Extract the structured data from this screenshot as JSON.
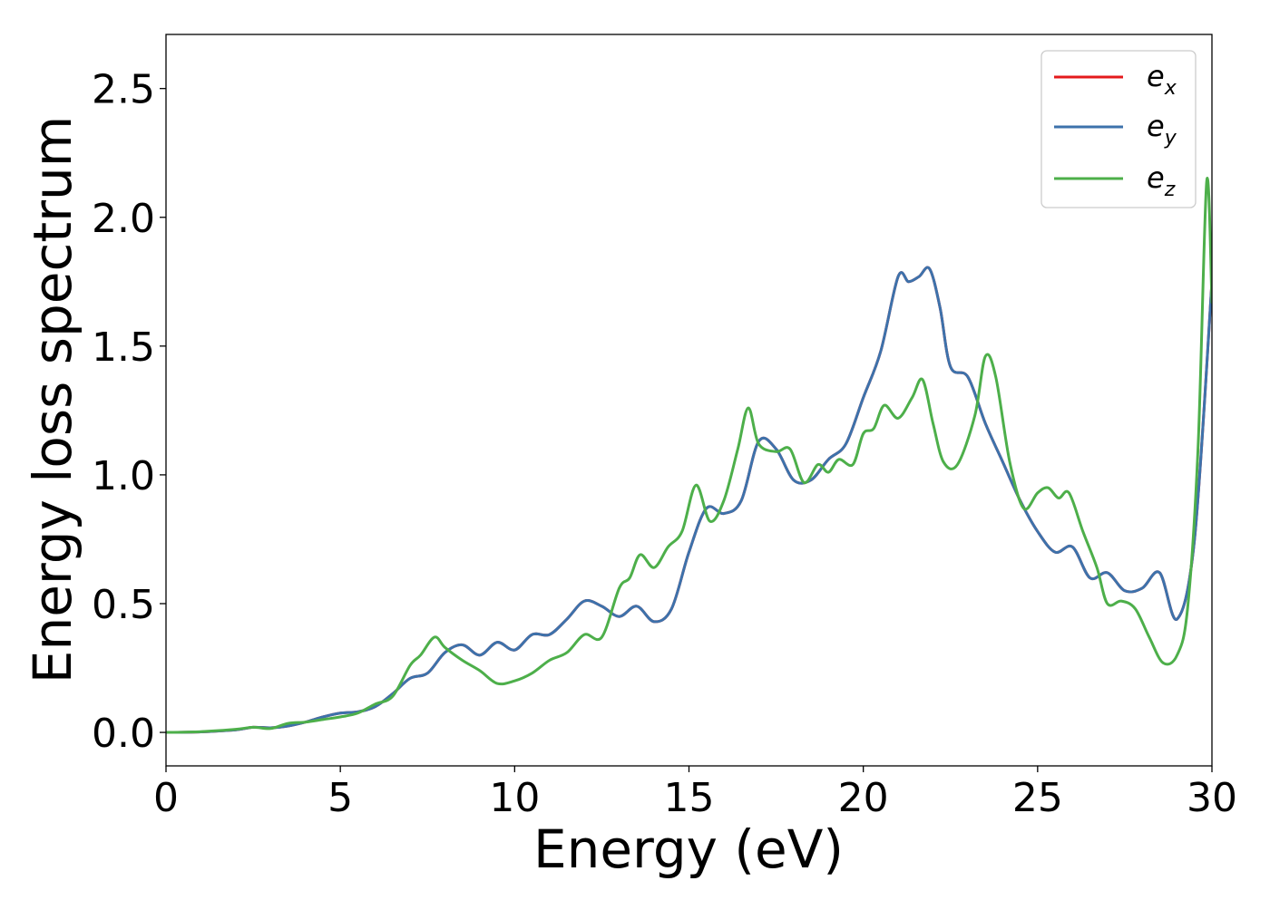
{
  "chart_data": {
    "type": "line",
    "title": "",
    "xlabel": "Energy (eV)",
    "ylabel": "Energy loss spectrum",
    "xlim": [
      0,
      30
    ],
    "ylim": [
      -0.13,
      2.71
    ],
    "xticks": [
      0,
      5,
      10,
      15,
      20,
      25,
      30
    ],
    "xtick_labels": [
      "0",
      "5",
      "10",
      "15",
      "20",
      "25",
      "30"
    ],
    "yticks": [
      0.0,
      0.5,
      1.0,
      1.5,
      2.0,
      2.5
    ],
    "ytick_labels": [
      "0.0",
      "0.5",
      "1.0",
      "1.5",
      "2.0",
      "2.5"
    ],
    "grid": false,
    "legend_position": "top-right",
    "series": [
      {
        "name": "e_x",
        "legend_base": "e",
        "legend_sub": "x",
        "color": "#e41a1c",
        "x": [
          0,
          1,
          2,
          2.5,
          3,
          3.5,
          4,
          4.5,
          5,
          5.5,
          6,
          6.5,
          7,
          7.5,
          8,
          8.5,
          9,
          9.5,
          10,
          10.5,
          11,
          11.5,
          12,
          12.5,
          13,
          13.5,
          14,
          14.5,
          15,
          15.5,
          16,
          16.5,
          17,
          17.5,
          18,
          18.5,
          19,
          19.5,
          20,
          20.5,
          21,
          21.3,
          21.6,
          21.9,
          22.2,
          22.5,
          23,
          23.5,
          24,
          24.5,
          25,
          25.5,
          26,
          26.5,
          27,
          27.5,
          28,
          28.5,
          29,
          29.5,
          30
        ],
        "y": [
          0,
          0.002,
          0.01,
          0.02,
          0.018,
          0.025,
          0.04,
          0.06,
          0.075,
          0.08,
          0.1,
          0.15,
          0.21,
          0.23,
          0.31,
          0.34,
          0.3,
          0.35,
          0.32,
          0.38,
          0.38,
          0.44,
          0.51,
          0.49,
          0.45,
          0.49,
          0.43,
          0.48,
          0.7,
          0.87,
          0.85,
          0.9,
          1.13,
          1.1,
          0.98,
          0.98,
          1.06,
          1.12,
          1.3,
          1.48,
          1.77,
          1.75,
          1.77,
          1.8,
          1.65,
          1.42,
          1.38,
          1.2,
          1.05,
          0.9,
          0.78,
          0.7,
          0.72,
          0.6,
          0.62,
          0.55,
          0.56,
          0.62,
          0.44,
          0.75,
          1.75
        ]
      },
      {
        "name": "e_y",
        "legend_base": "e",
        "legend_sub": "y",
        "color": "#3d72ab",
        "x": [
          0,
          1,
          2,
          2.5,
          3,
          3.5,
          4,
          4.5,
          5,
          5.5,
          6,
          6.5,
          7,
          7.5,
          8,
          8.5,
          9,
          9.5,
          10,
          10.5,
          11,
          11.5,
          12,
          12.5,
          13,
          13.5,
          14,
          14.5,
          15,
          15.5,
          16,
          16.5,
          17,
          17.5,
          18,
          18.5,
          19,
          19.5,
          20,
          20.5,
          21,
          21.3,
          21.6,
          21.9,
          22.2,
          22.5,
          23,
          23.5,
          24,
          24.5,
          25,
          25.5,
          26,
          26.5,
          27,
          27.5,
          28,
          28.5,
          29,
          29.5,
          30
        ],
        "y": [
          0,
          0.002,
          0.01,
          0.02,
          0.018,
          0.025,
          0.04,
          0.06,
          0.075,
          0.08,
          0.1,
          0.15,
          0.21,
          0.23,
          0.31,
          0.34,
          0.3,
          0.35,
          0.32,
          0.38,
          0.38,
          0.44,
          0.51,
          0.49,
          0.45,
          0.49,
          0.43,
          0.48,
          0.7,
          0.87,
          0.85,
          0.9,
          1.13,
          1.1,
          0.98,
          0.98,
          1.06,
          1.12,
          1.3,
          1.48,
          1.77,
          1.75,
          1.77,
          1.8,
          1.65,
          1.42,
          1.38,
          1.2,
          1.05,
          0.9,
          0.78,
          0.7,
          0.72,
          0.6,
          0.62,
          0.55,
          0.56,
          0.62,
          0.44,
          0.75,
          1.75
        ]
      },
      {
        "name": "e_z",
        "legend_base": "e",
        "legend_sub": "z",
        "color": "#4daf4a",
        "x": [
          0,
          1,
          2,
          2.5,
          3,
          3.5,
          4,
          4.5,
          5,
          5.5,
          6,
          6.5,
          7,
          7.3,
          7.7,
          8,
          8.5,
          9,
          9.5,
          10,
          10.5,
          11,
          11.5,
          12,
          12.5,
          13,
          13.3,
          13.6,
          14,
          14.4,
          14.8,
          15.2,
          15.6,
          16,
          16.4,
          16.7,
          17,
          17.5,
          17.9,
          18.3,
          18.7,
          19,
          19.3,
          19.7,
          20,
          20.3,
          20.6,
          21,
          21.4,
          21.7,
          22,
          22.3,
          22.7,
          23.2,
          23.5,
          23.8,
          24.2,
          24.6,
          25,
          25.3,
          25.6,
          25.9,
          26.3,
          26.7,
          27,
          27.4,
          27.8,
          28.2,
          28.6,
          29,
          29.3,
          29.6,
          29.85,
          30
        ],
        "y": [
          0,
          0.003,
          0.012,
          0.02,
          0.015,
          0.035,
          0.04,
          0.05,
          0.06,
          0.075,
          0.11,
          0.14,
          0.26,
          0.3,
          0.37,
          0.33,
          0.28,
          0.24,
          0.19,
          0.2,
          0.23,
          0.28,
          0.31,
          0.38,
          0.37,
          0.56,
          0.6,
          0.69,
          0.64,
          0.72,
          0.78,
          0.96,
          0.82,
          0.9,
          1.1,
          1.26,
          1.12,
          1.09,
          1.1,
          0.97,
          1.04,
          1.01,
          1.06,
          1.04,
          1.16,
          1.18,
          1.27,
          1.22,
          1.3,
          1.37,
          1.2,
          1.05,
          1.04,
          1.23,
          1.46,
          1.38,
          1.05,
          0.87,
          0.93,
          0.95,
          0.91,
          0.93,
          0.78,
          0.64,
          0.5,
          0.51,
          0.48,
          0.37,
          0.27,
          0.3,
          0.48,
          1.1,
          2.14,
          1.67
        ]
      }
    ]
  }
}
